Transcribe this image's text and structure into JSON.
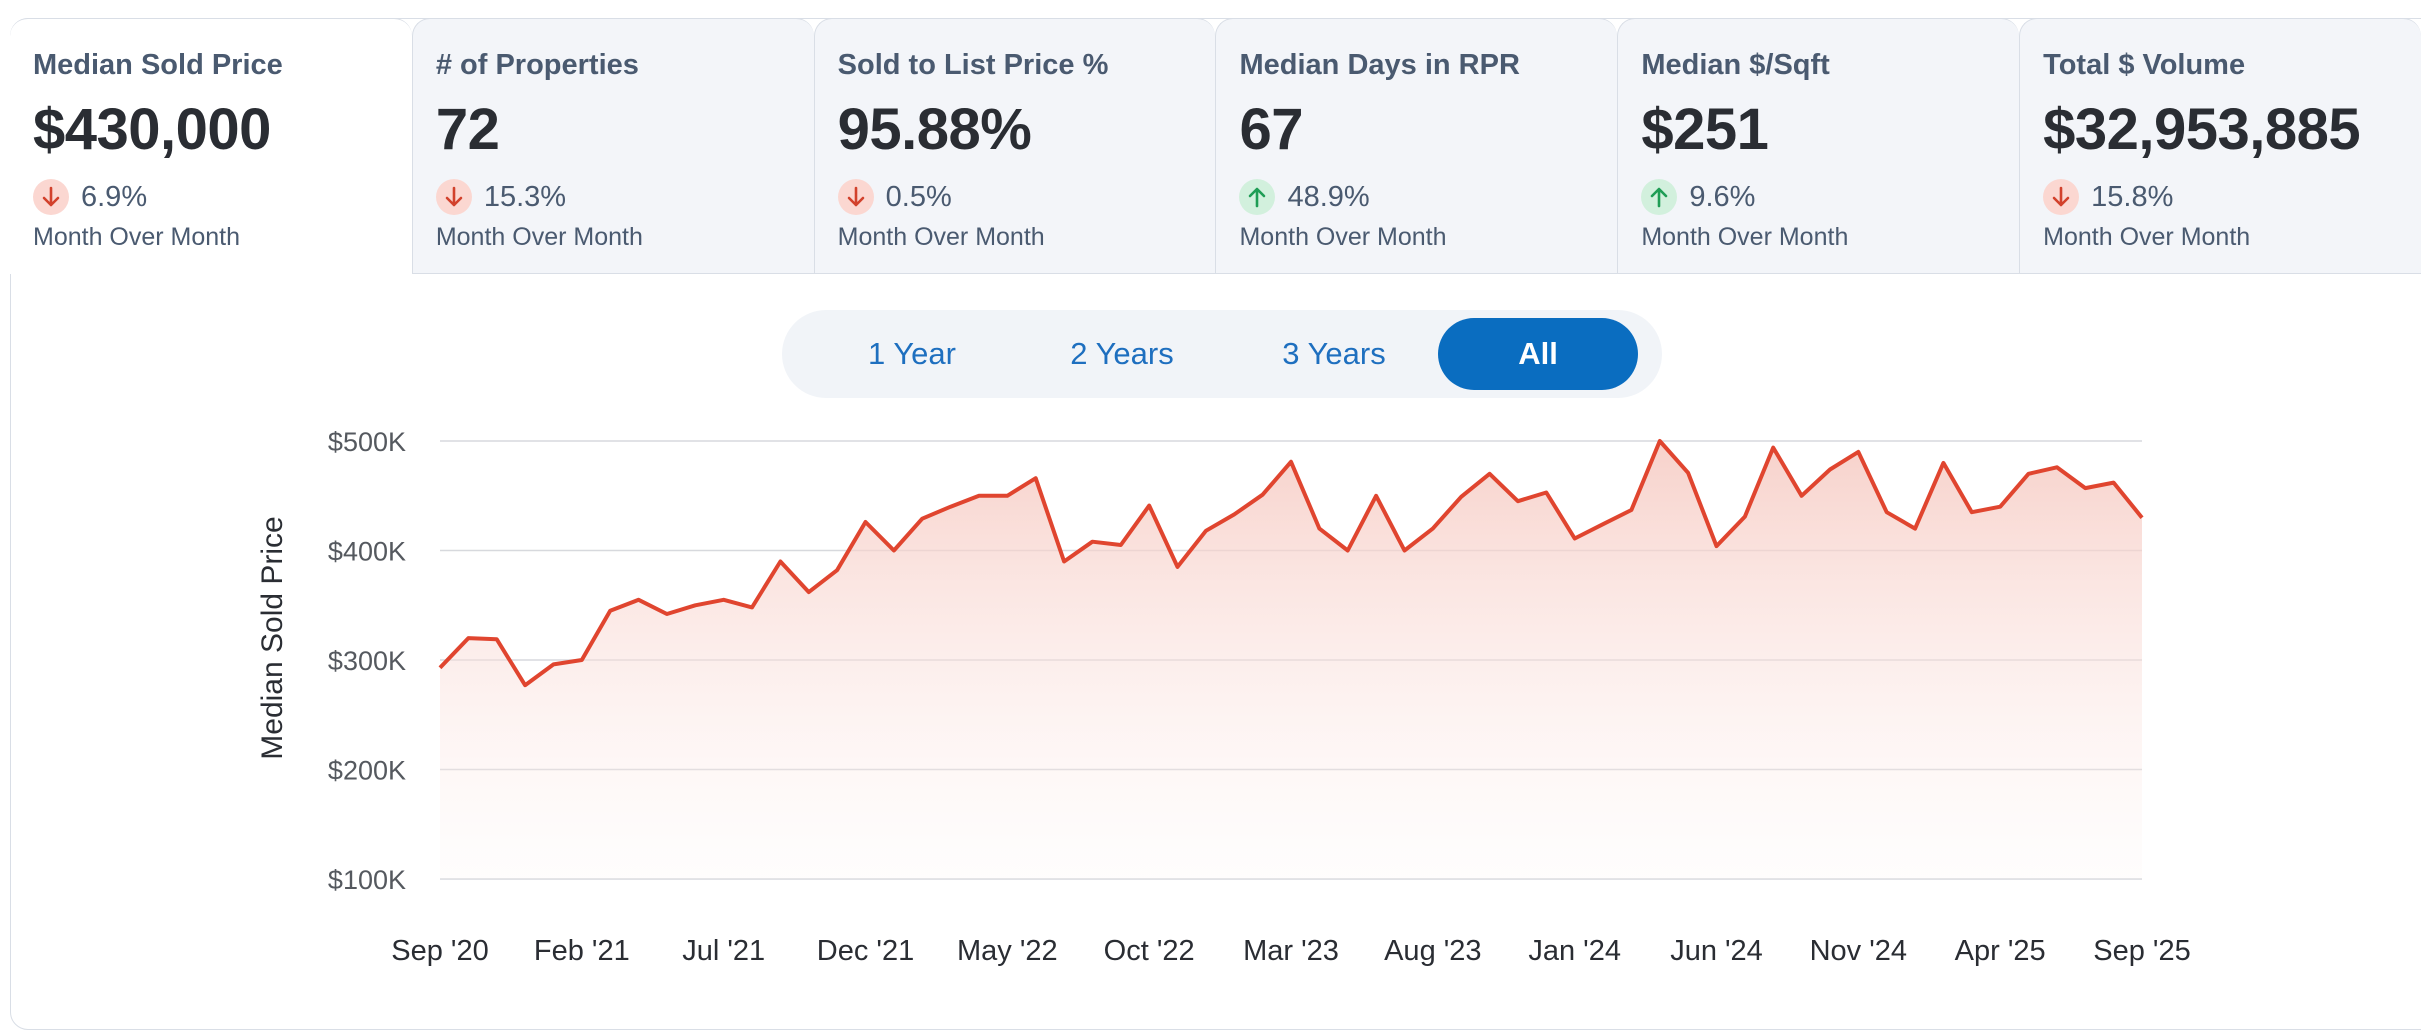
{
  "tabs": [
    {
      "label": "Median Sold Price",
      "value": "$430,000",
      "change": "6.9%",
      "direction": "down",
      "period": "Month Over Month"
    },
    {
      "label": "# of Properties",
      "value": "72",
      "change": "15.3%",
      "direction": "down",
      "period": "Month Over Month"
    },
    {
      "label": "Sold to List Price %",
      "value": "95.88%",
      "change": "0.5%",
      "direction": "down",
      "period": "Month Over Month"
    },
    {
      "label": "Median Days in RPR",
      "value": "67",
      "change": "48.9%",
      "direction": "up",
      "period": "Month Over Month"
    },
    {
      "label": "Median $/Sqft",
      "value": "$251",
      "change": "9.6%",
      "direction": "up",
      "period": "Month Over Month"
    },
    {
      "label": "Total $ Volume",
      "value": "$32,953,885",
      "change": "15.8%",
      "direction": "down",
      "period": "Month Over Month"
    }
  ],
  "range_selector": {
    "options": [
      "1 Year",
      "2 Years",
      "3 Years",
      "All"
    ],
    "selected": "All"
  },
  "colors": {
    "line": "#e0452f",
    "down": "#d2412c",
    "up": "#1f9d55",
    "accent": "#0a6dc0"
  },
  "chart_data": {
    "type": "area",
    "ylabel": "Median Sold Price",
    "xlabel": "",
    "ylim": [
      100000,
      500000
    ],
    "yticks": [
      100000,
      200000,
      300000,
      400000,
      500000
    ],
    "ytick_labels": [
      "$100K",
      "$200K",
      "$300K",
      "$400K",
      "$500K"
    ],
    "xtick_labels": [
      "Sep '20",
      "Feb '21",
      "Jul '21",
      "Dec '21",
      "May '22",
      "Oct '22",
      "Mar '23",
      "Aug '23",
      "Jan '24",
      "Jun '24",
      "Nov '24",
      "Apr '25",
      "Sep '25"
    ],
    "x": [
      "Sep '20",
      "Oct '20",
      "Nov '20",
      "Dec '20",
      "Jan '21",
      "Feb '21",
      "Mar '21",
      "Apr '21",
      "May '21",
      "Jun '21",
      "Jul '21",
      "Aug '21",
      "Sep '21",
      "Oct '21",
      "Nov '21",
      "Dec '21",
      "Jan '22",
      "Feb '22",
      "Mar '22",
      "Apr '22",
      "May '22",
      "Jun '22",
      "Jul '22",
      "Aug '22",
      "Sep '22",
      "Oct '22",
      "Nov '22",
      "Dec '22",
      "Jan '23",
      "Feb '23",
      "Mar '23",
      "Apr '23",
      "May '23",
      "Jun '23",
      "Jul '23",
      "Aug '23",
      "Sep '23",
      "Oct '23",
      "Nov '23",
      "Dec '23",
      "Jan '24",
      "Feb '24",
      "Mar '24",
      "Apr '24",
      "May '24",
      "Jun '24",
      "Jul '24",
      "Aug '24",
      "Sep '24",
      "Oct '24",
      "Nov '24",
      "Dec '24",
      "Jan '25",
      "Feb '25",
      "Mar '25",
      "Apr '25",
      "May '25",
      "Jun '25",
      "Jul '25",
      "Aug '25",
      "Sep '25"
    ],
    "series": [
      {
        "values": [
          293000,
          320000,
          319000,
          277000,
          296000,
          300000,
          345000,
          355000,
          342000,
          350000,
          355000,
          348000,
          390000,
          362000,
          382000,
          426000,
          400000,
          429000,
          440000,
          450000,
          450000,
          466000,
          390000,
          408000,
          405000,
          441000,
          385000,
          418000,
          433000,
          451000,
          481000,
          420000,
          400000,
          450000,
          400000,
          420000,
          449000,
          470000,
          445000,
          453000,
          411000,
          424000,
          437000,
          500000,
          471000,
          404000,
          431000,
          494000,
          450000,
          474000,
          490000,
          435000,
          420000,
          480000,
          435000,
          440000,
          470000,
          476000,
          457000,
          462000,
          430000
        ]
      }
    ],
    "grid": true,
    "legend": "none"
  }
}
